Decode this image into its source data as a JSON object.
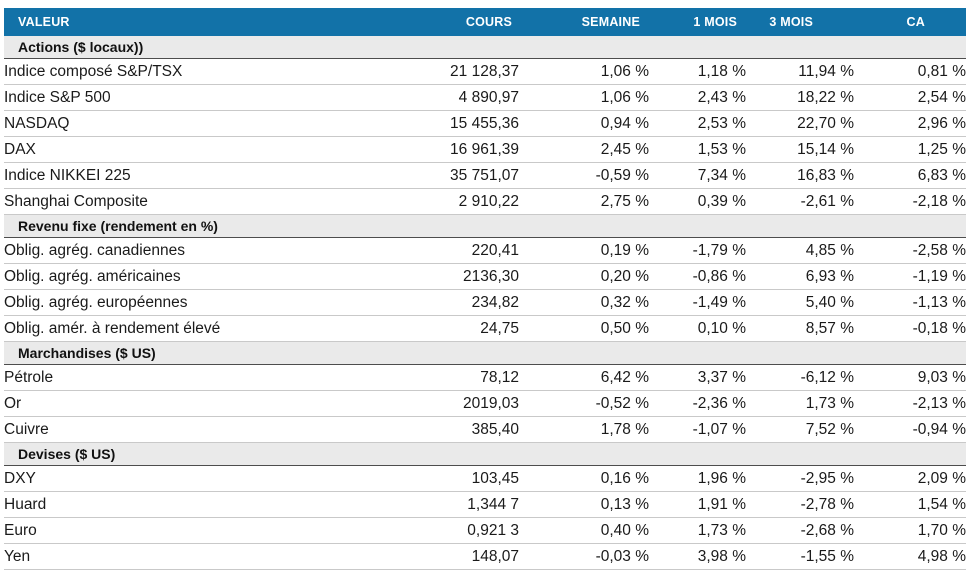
{
  "colors": {
    "header_bg": "#1272A8",
    "section_bg": "#EAEAEA",
    "positive": "#21A35B",
    "negative": "#E0231E",
    "section_border": "#4D4D4D",
    "row_border": "#C9C9C9"
  },
  "chart_data": {
    "type": "table",
    "columns": [
      "VALEUR",
      "COURS",
      "SEMAINE",
      "1 MOIS",
      "3 MOIS",
      "CA"
    ],
    "sections": [
      {
        "title": "Actions ($ locaux))",
        "rows": [
          [
            "Indice composé S&P/TSX",
            "21 128,37",
            "1,06 %",
            "1,18 %",
            "11,94 %",
            "0,81 %"
          ],
          [
            "Indice S&P 500",
            "4 890,97",
            "1,06 %",
            "2,43 %",
            "18,22 %",
            "2,54 %"
          ],
          [
            "NASDAQ",
            "15 455,36",
            "0,94 %",
            "2,53 %",
            "22,70 %",
            "2,96 %"
          ],
          [
            "DAX",
            "16 961,39",
            "2,45 %",
            "1,53 %",
            "15,14 %",
            "1,25 %"
          ],
          [
            "Indice NIKKEI 225",
            "35 751,07",
            "-0,59 %",
            "7,34 %",
            "16,83 %",
            "6,83 %"
          ],
          [
            "Shanghai Composite",
            "2 910,22",
            "2,75 %",
            "0,39 %",
            "-2,61 %",
            "-2,18 %"
          ]
        ]
      },
      {
        "title": "Revenu fixe (rendement en %)",
        "rows": [
          [
            "Oblig. agrég. canadiennes",
            "220,41",
            "0,19 %",
            "-1,79 %",
            "4,85 %",
            "-2,58 %"
          ],
          [
            "Oblig. agrég. américaines",
            "2136,30",
            "0,20 %",
            "-0,86 %",
            "6,93 %",
            "-1,19 %"
          ],
          [
            "Oblig. agrég. européennes",
            "234,82",
            "0,32 %",
            "-1,49 %",
            "5,40 %",
            "-1,13 %"
          ],
          [
            "Oblig. amér. à rendement élevé",
            "24,75",
            "0,50 %",
            "0,10 %",
            "8,57 %",
            "-0,18 %"
          ]
        ]
      },
      {
        "title": "Marchandises ($ US)",
        "rows": [
          [
            "Pétrole",
            "78,12",
            "6,42 %",
            "3,37 %",
            "-6,12 %",
            "9,03 %"
          ],
          [
            "Or",
            "2019,03",
            "-0,52 %",
            "-2,36 %",
            "1,73 %",
            "-2,13 %"
          ],
          [
            "Cuivre",
            "385,40",
            "1,78 %",
            "-1,07 %",
            "7,52 %",
            "-0,94 %"
          ]
        ]
      },
      {
        "title": "Devises ($ US)",
        "rows": [
          [
            "DXY",
            "103,45",
            "0,16 %",
            "1,96 %",
            "-2,95 %",
            "2,09 %"
          ],
          [
            "Huard",
            "1,344 7",
            "0,13 %",
            "1,91 %",
            "-2,78 %",
            "1,54 %"
          ],
          [
            "Euro",
            "0,921 3",
            "0,40 %",
            "1,73 %",
            "-2,68 %",
            "1,70 %"
          ],
          [
            "Yen",
            "148,07",
            "-0,03 %",
            "3,98 %",
            "-1,55 %",
            "4,98 %"
          ]
        ]
      }
    ]
  }
}
